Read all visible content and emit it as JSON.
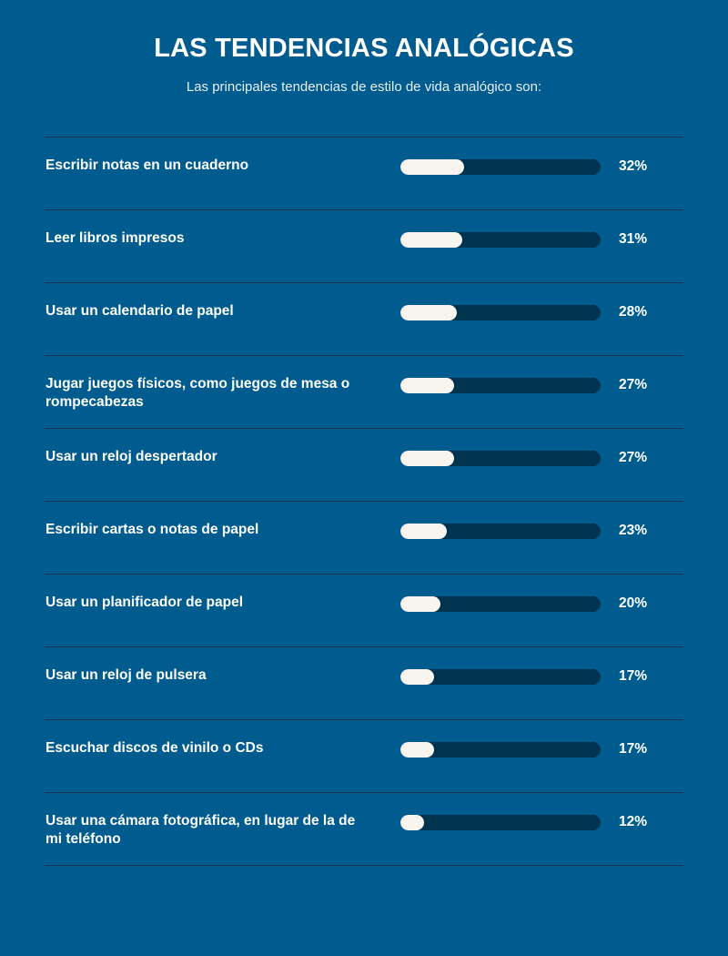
{
  "page": {
    "title": "LAS TENDENCIAS ANALÓGICAS",
    "subtitle": "Las principales tendencias de estilo de vida analógico son:"
  },
  "colors": {
    "background": "#005b8f",
    "track": "#00334e",
    "fill": "#f8f4ee",
    "divider": "#16324a",
    "text": "#ffffff"
  },
  "chart_data": {
    "type": "bar",
    "orientation": "horizontal",
    "title": "LAS TENDENCIAS ANALÓGICAS",
    "subtitle": "Las principales tendencias de estilo de vida analógico son:",
    "xlim": [
      0,
      100
    ],
    "unit": "%",
    "grid": false,
    "categories": [
      "Escribir notas en un cuaderno",
      "Leer libros impresos",
      "Usar un calendario de papel",
      "Jugar juegos físicos, como juegos de mesa o rompecabezas",
      "Usar un reloj despertador",
      "Escribir cartas o notas de papel",
      "Usar un planificador de papel",
      "Usar un reloj de pulsera",
      "Escuchar discos de vinilo o CDs",
      "Usar una cámara fotográfica, en lugar de la de mi teléfono"
    ],
    "values": [
      32,
      31,
      28,
      27,
      27,
      23,
      20,
      17,
      17,
      12
    ],
    "value_labels": [
      "32%",
      "31%",
      "28%",
      "27%",
      "27%",
      "23%",
      "20%",
      "17%",
      "17%",
      "12%"
    ]
  }
}
